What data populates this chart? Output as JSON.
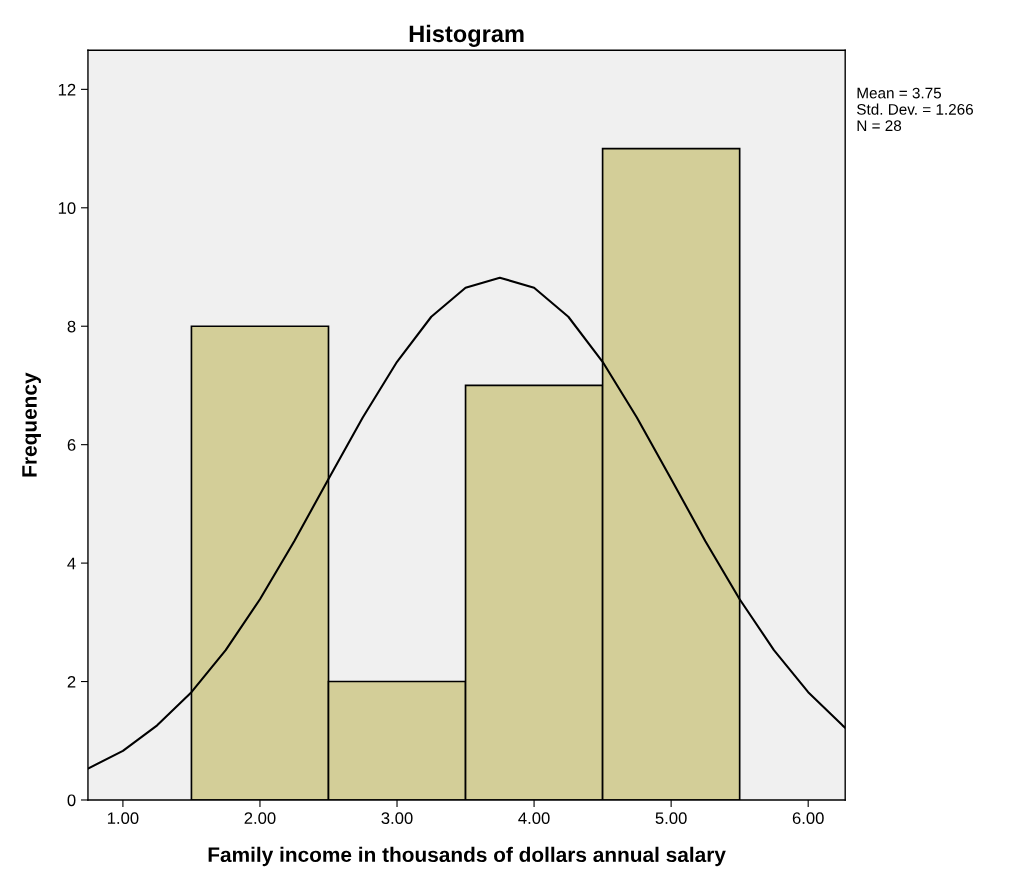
{
  "chart_data": {
    "type": "histogram",
    "title": "Histogram",
    "xlabel": "Family income in thousands of dollars annual salary",
    "ylabel": "Frequency",
    "bins": [
      1.5,
      2.5,
      3.5,
      4.5,
      5.5
    ],
    "values": [
      8,
      2,
      7,
      11
    ],
    "color": "#d3ce98",
    "series": [
      {
        "type": "line",
        "color": "#000000",
        "x": [
          0.745,
          1.0,
          1.25,
          1.5,
          1.75,
          2.0,
          2.25,
          2.5,
          2.75,
          3.0,
          3.25,
          3.5,
          3.75,
          4.0,
          4.25,
          4.5,
          4.75,
          5.0,
          5.25,
          5.5,
          5.75,
          6.0,
          6.25,
          6.27
        ],
        "values": [
          0.53,
          0.83,
          1.26,
          1.82,
          2.53,
          3.39,
          4.37,
          5.42,
          6.46,
          7.4,
          8.16,
          8.65,
          8.82,
          8.65,
          8.16,
          7.4,
          6.46,
          5.42,
          4.37,
          3.39,
          2.53,
          1.82,
          1.26,
          1.22
        ]
      }
    ],
    "xlim": [
      0.745,
      6.27
    ],
    "xticks": [
      {
        "value": 1,
        "label": "1.00"
      },
      {
        "value": 2,
        "label": "2.00"
      },
      {
        "value": 3,
        "label": "3.00"
      },
      {
        "value": 4,
        "label": "4.00"
      },
      {
        "value": 5,
        "label": "5.00"
      },
      {
        "value": 6,
        "label": "6.00"
      }
    ],
    "ylim": [
      0,
      12.66
    ],
    "yticks": [
      0,
      2,
      4,
      6,
      8,
      10,
      12
    ],
    "annotations": [
      "Mean = 3.75",
      "Std. Dev. = 1.266",
      "N = 28"
    ]
  }
}
